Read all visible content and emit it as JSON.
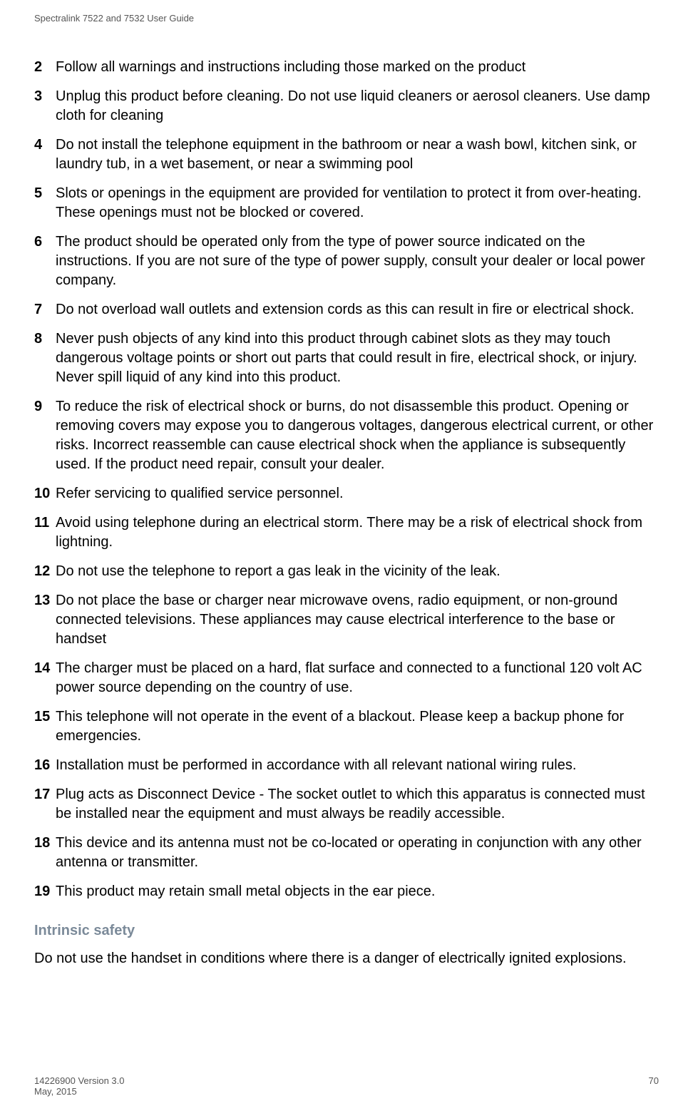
{
  "header": {
    "title": "Spectralink 7522 and 7532 User Guide"
  },
  "list": [
    {
      "n": "2",
      "t": "Follow all warnings and instructions including those marked on the product"
    },
    {
      "n": "3",
      "t": "Unplug this product before cleaning. Do not use liquid cleaners or aerosol cleaners. Use damp cloth for cleaning"
    },
    {
      "n": "4",
      "t": "Do not install the telephone equipment in the bathroom or near a wash bowl, kitchen sink, or laundry tub, in a wet basement, or near a swimming pool"
    },
    {
      "n": "5",
      "t": "Slots or openings in the equipment are provided for ventilation to protect it from over-heating. These openings must not be blocked or covered."
    },
    {
      "n": "6",
      "t": "The product should be operated only from the type of power source indicated on the instructions. If you are not sure of the type of power supply, consult your dealer or local power company."
    },
    {
      "n": "7",
      "t": "Do not overload wall outlets and extension cords as this can result in fire or electrical shock."
    },
    {
      "n": "8",
      "t": "Never push objects of any kind into this product through cabinet slots as they may touch dangerous voltage points or short out parts that could result in fire, electrical shock, or injury. Never spill liquid of any kind into this product."
    },
    {
      "n": "9",
      "t": "To reduce the risk of electrical shock or burns, do not disassemble this product. Opening or removing covers may expose you to dangerous voltages, dangerous electrical current, or other risks. Incorrect reassemble can cause electrical shock when the appliance is subsequently used. If the product need repair, consult your dealer."
    },
    {
      "n": "10",
      "t": "Refer servicing to qualified service personnel."
    },
    {
      "n": "11",
      "t": "Avoid using telephone during an electrical storm. There may be a risk of electrical shock from lightning."
    },
    {
      "n": "12",
      "t": "Do not use the telephone to report a gas leak in the vicinity of the leak."
    },
    {
      "n": "13",
      "t": "Do not place the base or charger near microwave ovens, radio equipment, or non-ground connected televisions. These appliances may cause electrical interference to the base or handset"
    },
    {
      "n": "14",
      "t": "The charger must be placed on a hard, flat surface and connected to a functional 120 volt AC power source depending on the country of use."
    },
    {
      "n": "15",
      "t": "This telephone will not operate in the event of a blackout. Please keep a backup phone for emergencies."
    },
    {
      "n": "16",
      "t": "Installation must be performed in accordance with all relevant national wiring rules."
    },
    {
      "n": "17",
      "t": "Plug acts as Disconnect Device - The socket outlet to which this apparatus is connected must be installed near the equipment and must always be readily accessible."
    },
    {
      "n": "18",
      "t": "This device and its antenna must not be co-located or operating in conjunction with any other antenna or transmitter."
    },
    {
      "n": "19",
      "t": "This product may retain small metal objects in the ear piece."
    }
  ],
  "section": {
    "heading": "Intrinsic safety",
    "body": "Do not use the handset in conditions where there is a danger of electrically ignited explosions."
  },
  "footer": {
    "version": "14226900 Version 3.0",
    "date": "May, 2015",
    "page": "70"
  }
}
